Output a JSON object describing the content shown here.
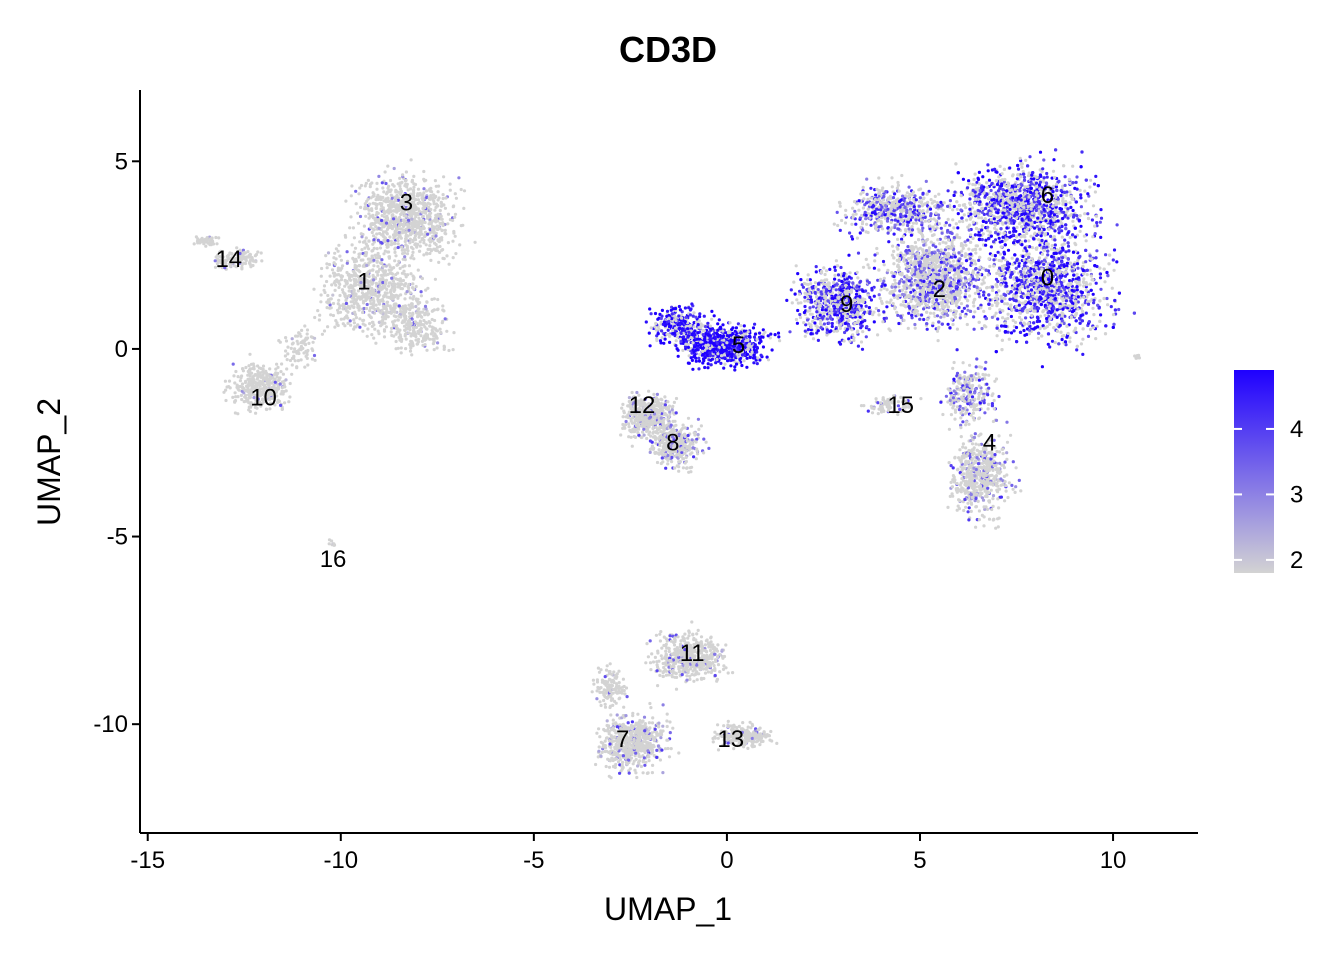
{
  "chart_data": {
    "type": "scatter",
    "title": "CD3D",
    "xlabel": "UMAP_1",
    "ylabel": "UMAP_2",
    "xlim": [
      -15.2,
      12.2
    ],
    "ylim": [
      -12.9,
      6.9
    ],
    "x_ticks": [
      -15,
      -10,
      -5,
      0,
      5,
      10
    ],
    "y_ticks": [
      5,
      0,
      -5,
      -10
    ],
    "x_tick_labels": [
      "-15",
      "-10",
      "-5",
      "0",
      "5",
      "10"
    ],
    "y_tick_labels": [
      "5",
      "0",
      "-5",
      "-10"
    ],
    "grid": false,
    "color_scale": {
      "low_color": "#d3d3d3",
      "high_color": "#1f00ff",
      "min": 1.8,
      "max": 4.9,
      "ticks": [
        2,
        3,
        4
      ],
      "tick_labels": [
        "2",
        "3",
        "4"
      ],
      "legend_position": "right"
    },
    "clusters": [
      {
        "label": "0",
        "x": 8.3,
        "y": 1.9
      },
      {
        "label": "1",
        "x": -9.4,
        "y": 1.8
      },
      {
        "label": "2",
        "x": 5.5,
        "y": 1.6
      },
      {
        "label": "3",
        "x": -8.3,
        "y": 3.9
      },
      {
        "label": "4",
        "x": 6.8,
        "y": -2.5
      },
      {
        "label": "5",
        "x": 0.3,
        "y": 0.1
      },
      {
        "label": "6",
        "x": 8.3,
        "y": 4.1
      },
      {
        "label": "7",
        "x": -2.7,
        "y": -10.4
      },
      {
        "label": "8",
        "x": -1.4,
        "y": -2.5
      },
      {
        "label": "9",
        "x": 3.1,
        "y": 1.2
      },
      {
        "label": "10",
        "x": -12.0,
        "y": -1.3
      },
      {
        "label": "11",
        "x": -0.9,
        "y": -8.1
      },
      {
        "label": "12",
        "x": -2.2,
        "y": -1.5
      },
      {
        "label": "13",
        "x": 0.1,
        "y": -10.4
      },
      {
        "label": "14",
        "x": -12.9,
        "y": 2.4
      },
      {
        "label": "15",
        "x": 4.5,
        "y": -1.5
      },
      {
        "label": "16",
        "x": -10.2,
        "y": -5.6
      }
    ]
  }
}
